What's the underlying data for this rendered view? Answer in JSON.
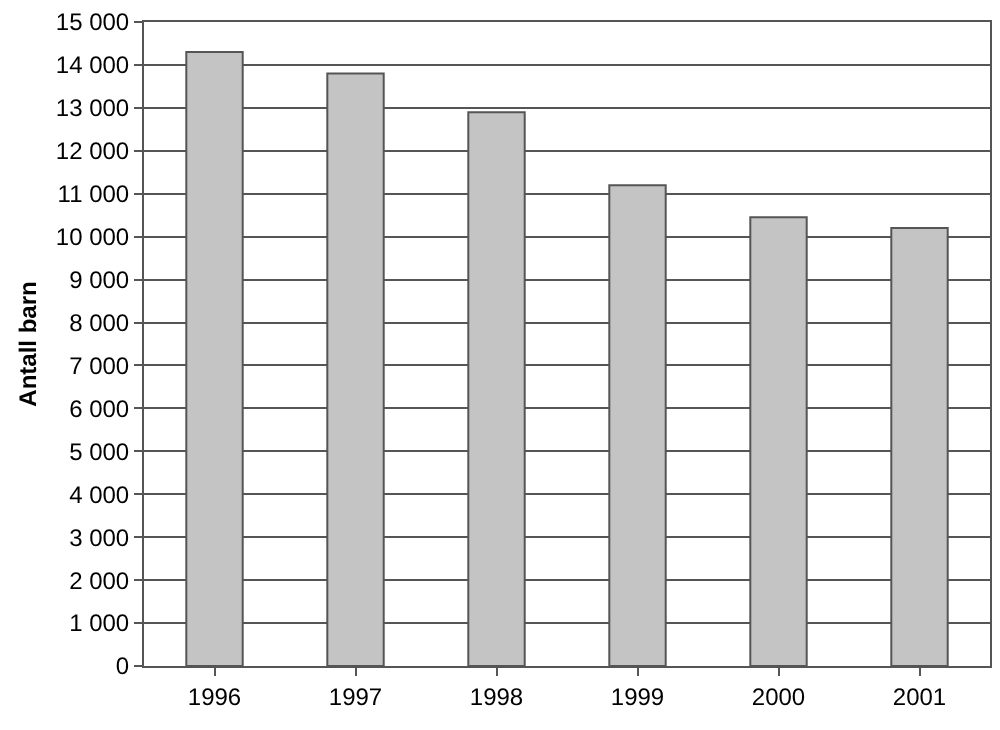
{
  "chart_data": {
    "type": "bar",
    "ylabel": "Antall barn",
    "categories": [
      "1996",
      "1997",
      "1998",
      "1999",
      "2000",
      "2001"
    ],
    "values": [
      14300,
      13800,
      12900,
      11200,
      10450,
      10200
    ],
    "color": "#c4c4c4",
    "ylim": [
      0,
      15000
    ],
    "yticks": [
      0,
      {
        "value": 1000,
        "label": "1 000"
      },
      {
        "value": 2000,
        "label": "2 000"
      },
      {
        "value": 3000,
        "label": "3 000"
      },
      {
        "value": 4000,
        "label": "4 000"
      },
      {
        "value": 5000,
        "label": "5 000"
      },
      {
        "value": 6000,
        "label": "6 000"
      },
      {
        "value": 7000,
        "label": "7 000"
      },
      {
        "value": 8000,
        "label": "8 000"
      },
      {
        "value": 9000,
        "label": "9 000"
      },
      {
        "value": 10000,
        "label": "10 000"
      },
      {
        "value": 11000,
        "label": "11 000"
      },
      {
        "value": 12000,
        "label": "12 000"
      },
      {
        "value": 13000,
        "label": "13 000"
      },
      {
        "value": 14000,
        "label": "14 000"
      },
      {
        "value": 15000,
        "label": "15 000"
      }
    ],
    "grid": "y"
  }
}
